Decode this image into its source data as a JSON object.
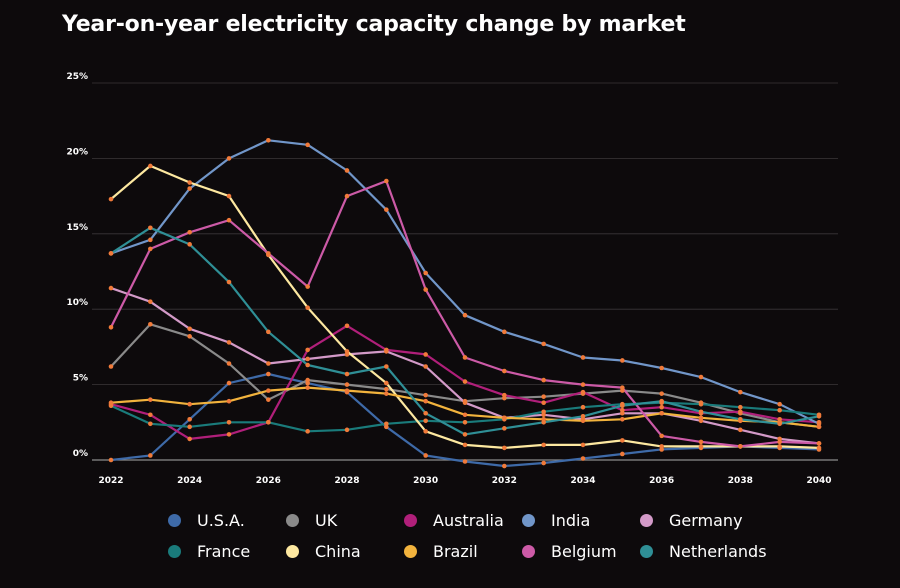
{
  "chart_data": {
    "type": "line",
    "title": "Year-on-year electricity capacity change by market",
    "xlabel": "",
    "ylabel": "",
    "x": [
      2022,
      2023,
      2024,
      2025,
      2026,
      2027,
      2028,
      2029,
      2030,
      2031,
      2032,
      2033,
      2034,
      2035,
      2036,
      2037,
      2038,
      2039,
      2040
    ],
    "x_ticks": [
      "2022",
      "2024",
      "2026",
      "2028",
      "2030",
      "2032",
      "2034",
      "2036",
      "2038",
      "2040"
    ],
    "x_tick_values": [
      2022,
      2024,
      2026,
      2028,
      2030,
      2032,
      2034,
      2036,
      2038,
      2040
    ],
    "y_ticks": [
      "0%",
      "5%",
      "10%",
      "15%",
      "20%",
      "25%"
    ],
    "y_tick_values": [
      0,
      5,
      10,
      15,
      20,
      25
    ],
    "xlim": [
      2022,
      2040
    ],
    "ylim": [
      -0.5,
      25
    ],
    "grid": true,
    "legend_position": "bottom",
    "marker_color": "#f07a3a",
    "series": [
      {
        "name": "U.S.A.",
        "color": "#3e6aa8",
        "values": [
          0.0,
          0.3,
          2.7,
          5.1,
          5.7,
          5.1,
          4.5,
          2.2,
          0.3,
          -0.1,
          -0.4,
          -0.2,
          0.1,
          0.4,
          0.7,
          0.8,
          0.9,
          0.8,
          0.7
        ]
      },
      {
        "name": "UK",
        "color": "#8a8a8a",
        "values": [
          6.2,
          9.0,
          8.2,
          6.4,
          4.0,
          5.3,
          5.0,
          4.7,
          4.3,
          3.9,
          4.1,
          4.2,
          4.4,
          4.6,
          4.4,
          3.8,
          3.1,
          2.5,
          2.2
        ]
      },
      {
        "name": "Australia",
        "color": "#b01f7a",
        "values": [
          3.7,
          3.0,
          1.4,
          1.7,
          2.5,
          7.3,
          8.9,
          7.3,
          7.0,
          5.2,
          4.3,
          3.8,
          4.5,
          3.3,
          3.5,
          3.1,
          3.2,
          2.7,
          2.5
        ]
      },
      {
        "name": "India",
        "color": "#7196c9",
        "values": [
          13.7,
          14.6,
          18.0,
          20.0,
          21.2,
          20.9,
          19.2,
          16.6,
          12.4,
          9.6,
          8.5,
          7.7,
          6.8,
          6.6,
          6.1,
          5.5,
          4.5,
          3.7,
          2.4
        ]
      },
      {
        "name": "Germany",
        "color": "#d39ac8",
        "values": [
          11.4,
          10.5,
          8.7,
          7.8,
          6.4,
          6.7,
          7.0,
          7.2,
          6.2,
          3.8,
          2.8,
          3.0,
          2.7,
          3.1,
          3.1,
          2.6,
          2.0,
          1.4,
          1.1
        ]
      },
      {
        "name": "France",
        "color": "#1a7b7b",
        "values": [
          3.6,
          2.4,
          2.2,
          2.5,
          2.5,
          1.9,
          2.0,
          2.4,
          2.6,
          2.5,
          2.7,
          3.2,
          3.5,
          3.7,
          3.8,
          3.7,
          3.5,
          3.3,
          3.0
        ]
      },
      {
        "name": "China",
        "color": "#fde8a0",
        "values": [
          17.3,
          19.5,
          18.4,
          17.5,
          13.6,
          10.1,
          7.2,
          5.1,
          1.9,
          1.0,
          0.8,
          1.0,
          1.0,
          1.3,
          0.9,
          0.9,
          0.9,
          0.9,
          0.8
        ]
      },
      {
        "name": "Brazil",
        "color": "#f2b33d",
        "values": [
          3.8,
          4.0,
          3.7,
          3.9,
          4.6,
          4.8,
          4.6,
          4.4,
          3.9,
          3.0,
          2.8,
          2.7,
          2.6,
          2.7,
          3.1,
          2.8,
          2.6,
          2.5,
          2.2
        ]
      },
      {
        "name": "Belgium",
        "color": "#cc5aa7",
        "values": [
          8.8,
          14.0,
          15.1,
          15.9,
          13.7,
          11.5,
          17.5,
          18.5,
          11.3,
          6.8,
          5.9,
          5.3,
          5.0,
          4.8,
          1.6,
          1.2,
          0.9,
          1.2,
          1.1
        ]
      },
      {
        "name": "Netherlands",
        "color": "#2f8f96",
        "values": [
          13.7,
          15.4,
          14.3,
          11.8,
          8.5,
          6.3,
          5.7,
          6.2,
          3.1,
          1.7,
          2.1,
          2.5,
          2.9,
          3.6,
          3.9,
          3.2,
          2.7,
          2.4,
          2.9
        ]
      }
    ]
  }
}
